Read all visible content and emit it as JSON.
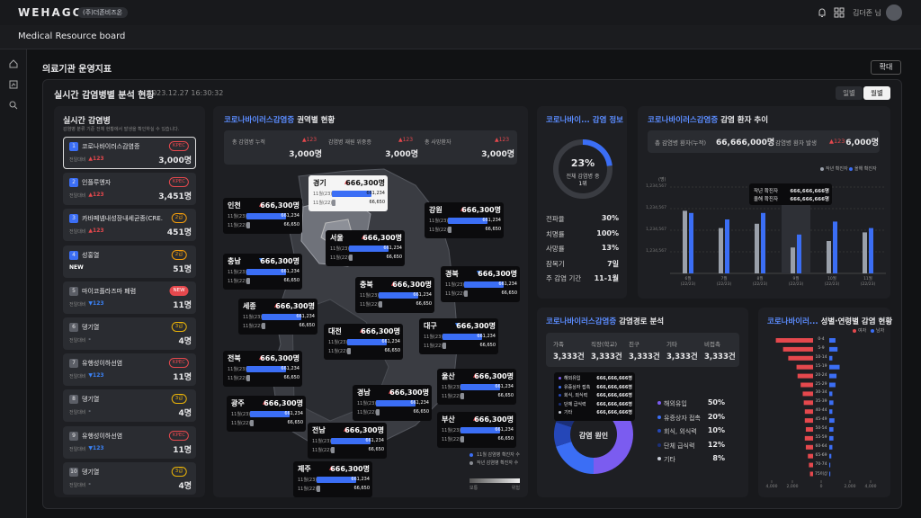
{
  "header": {
    "logo": "WEHAGO",
    "company": "(주)더존비즈온",
    "user": "김더존 님"
  },
  "board_title": "Medical Resource board",
  "page": {
    "title": "의료기관 운영지표",
    "expand": "확대"
  },
  "panel": {
    "title": "실시간 감염병별 분석 현황",
    "timestamp": "2023.12.27 16:30:32",
    "tabs": [
      "일별",
      "월별"
    ]
  },
  "disease_list": {
    "title": "실시간 감염병",
    "subtitle": "감염병 분류 기준 전체 현황에서 발생을 확인하실 수 있습니다.",
    "items": [
      {
        "rank": "1",
        "rank_color": "#3b6ef5",
        "name": "코로나바이러스감염증",
        "badge": "KPEC",
        "badge_color": "#e5484d",
        "compare": "전일대비",
        "change": "▲123",
        "change_color": "#e5484d",
        "count": "3,000명"
      },
      {
        "rank": "2",
        "rank_color": "#3b6ef5",
        "name": "인플루엔자",
        "badge": "KPEC",
        "badge_color": "#e5484d",
        "compare": "전일대비",
        "change": "▲123",
        "change_color": "#e5484d",
        "count": "3,451명"
      },
      {
        "rank": "3",
        "rank_color": "#3b6ef5",
        "name": "카바페넴내성장내세균종(CRE...",
        "badge": "2급",
        "badge_color": "#f59e0b",
        "compare": "전일대비",
        "change": "▲123",
        "change_color": "#e5484d",
        "count": "451명"
      },
      {
        "rank": "4",
        "rank_color": "#3b6ef5",
        "name": "성홍열",
        "badge": "2급",
        "badge_color": "#f59e0b",
        "change": "NEW",
        "change_color": "#ffffff",
        "count": "51명"
      },
      {
        "rank": "5",
        "rank_color": "#5b5e66",
        "name": "마이코플라즈마 폐렴",
        "badge": "NEW",
        "badge_color": "#e5484d",
        "badge_filled": true,
        "compare": "전일대비",
        "change": "▼123",
        "change_color": "#3b82f6",
        "count": "11명"
      },
      {
        "rank": "6",
        "rank_color": "#5b5e66",
        "name": "뎅기열",
        "badge": "3급",
        "badge_color": "#eab308",
        "compare": "전일대비",
        "change": "-",
        "change_color": "#9ca3af",
        "count": "4명"
      },
      {
        "rank": "7",
        "rank_color": "#5b5e66",
        "name": "유행성이하선염",
        "badge": "KPEC",
        "badge_color": "#e5484d",
        "compare": "전일대비",
        "change": "▼123",
        "change_color": "#3b82f6",
        "count": "11명"
      },
      {
        "rank": "8",
        "rank_color": "#5b5e66",
        "name": "뎅기열",
        "badge": "3급",
        "badge_color": "#eab308",
        "compare": "전일대비",
        "change": "-",
        "change_color": "#9ca3af",
        "count": "4명"
      },
      {
        "rank": "9",
        "rank_color": "#5b5e66",
        "name": "유행성이하선염",
        "badge": "KPEC",
        "badge_color": "#e5484d",
        "compare": "전일대비",
        "change": "▼123",
        "change_color": "#3b82f6",
        "count": "11명"
      },
      {
        "rank": "10",
        "rank_color": "#5b5e66",
        "name": "뎅기열",
        "badge": "3급",
        "badge_color": "#eab308",
        "compare": "전일대비",
        "change": "-",
        "change_color": "#9ca3af",
        "count": "4명"
      }
    ]
  },
  "regional": {
    "title_highlight": "코로나바이러스감염증",
    "title": "권역별 현황",
    "stats": [
      {
        "label": "총 감염병 누적",
        "change": "▲123",
        "value": "3,000명"
      },
      {
        "label": "감염병 재원 위중증",
        "change": "▲123",
        "value": "3,000명"
      },
      {
        "label": "총 사망환자",
        "change": "▲123",
        "value": "3,000명"
      }
    ],
    "regions": [
      {
        "name": "경기",
        "change": "▲",
        "change_color": "#e5484d",
        "total": "666,300명",
        "rows": [
          {
            "label": "11월(23)",
            "value": 661234,
            "value_label": "661,234"
          },
          {
            "label": "11월(22)",
            "value": 66650,
            "value_label": "66,650"
          }
        ]
      },
      {
        "name": "인천",
        "change": "▲",
        "change_color": "#e5484d",
        "total": "666,300명",
        "rows": [
          {
            "label": "11월(23)",
            "value": 661234,
            "value_label": "661,234"
          },
          {
            "label": "11월(22)",
            "value": 66650,
            "value_label": "66,650"
          }
        ]
      },
      {
        "name": "강원",
        "change": "▲",
        "change_color": "#e5484d",
        "total": "666,300명",
        "rows": [
          {
            "label": "11월(23)",
            "value": 661234,
            "value_label": "661,234"
          },
          {
            "label": "11월(22)",
            "value": 66650,
            "value_label": "66,650"
          }
        ]
      },
      {
        "name": "서울",
        "change": "▲",
        "change_color": "#e5484d",
        "total": "666,300명",
        "rows": [
          {
            "label": "11월(23)",
            "value": 661234,
            "value_label": "661,234"
          },
          {
            "label": "11월(22)",
            "value": 66650,
            "value_label": "66,650"
          }
        ]
      },
      {
        "name": "충남",
        "change": "▼",
        "change_color": "#3b82f6",
        "total": "666,300명",
        "rows": [
          {
            "label": "11월(23)",
            "value": 661234,
            "value_label": "661,234"
          },
          {
            "label": "11월(22)",
            "value": 66650,
            "value_label": "66,650"
          }
        ]
      },
      {
        "name": "경북",
        "change": "▼",
        "change_color": "#3b82f6",
        "total": "666,300명",
        "rows": [
          {
            "label": "11월(23)",
            "value": 661234,
            "value_label": "661,234"
          },
          {
            "label": "11월(22)",
            "value": 66650,
            "value_label": "66,650"
          }
        ]
      },
      {
        "name": "충북",
        "change": "▲",
        "change_color": "#e5484d",
        "total": "666,300명",
        "rows": [
          {
            "label": "11월(23)",
            "value": 661234,
            "value_label": "661,234"
          },
          {
            "label": "11월(22)",
            "value": 66650,
            "value_label": "66,650"
          }
        ]
      },
      {
        "name": "세종",
        "change": "▲",
        "change_color": "#e5484d",
        "total": "666,300명",
        "rows": [
          {
            "label": "11월(23)",
            "value": 661234,
            "value_label": "661,234"
          },
          {
            "label": "11월(22)",
            "value": 66650,
            "value_label": "66,650"
          }
        ]
      },
      {
        "name": "대전",
        "change": "▲",
        "change_color": "#e5484d",
        "total": "666,300명",
        "rows": [
          {
            "label": "11월(23)",
            "value": 661234,
            "value_label": "661,234"
          },
          {
            "label": "11월(22)",
            "value": 66650,
            "value_label": "66,650"
          }
        ]
      },
      {
        "name": "대구",
        "change": "▼",
        "change_color": "#3b82f6",
        "total": "666,300명",
        "rows": [
          {
            "label": "11월(23)",
            "value": 661234,
            "value_label": "661,234"
          },
          {
            "label": "11월(22)",
            "value": 66650,
            "value_label": "66,650"
          }
        ]
      },
      {
        "name": "전북",
        "change": "▲",
        "change_color": "#e5484d",
        "total": "666,300명",
        "rows": [
          {
            "label": "11월(23)",
            "value": 661234,
            "value_label": "661,234"
          },
          {
            "label": "11월(22)",
            "value": 66650,
            "value_label": "66,650"
          }
        ]
      },
      {
        "name": "울산",
        "change": "▲",
        "change_color": "#e5484d",
        "total": "666,300명",
        "rows": [
          {
            "label": "11월(23)",
            "value": 661234,
            "value_label": "661,234"
          },
          {
            "label": "11월(22)",
            "value": 66650,
            "value_label": "66,650"
          }
        ]
      },
      {
        "name": "경남",
        "change": "▲",
        "change_color": "#e5484d",
        "total": "666,300명",
        "rows": [
          {
            "label": "11월(23)",
            "value": 661234,
            "value_label": "661,234"
          },
          {
            "label": "11월(22)",
            "value": 66650,
            "value_label": "66,650"
          }
        ]
      },
      {
        "name": "광주",
        "change": "▲",
        "change_color": "#e5484d",
        "total": "666,300명",
        "rows": [
          {
            "label": "11월(23)",
            "value": 661234,
            "value_label": "661,234"
          },
          {
            "label": "11월(22)",
            "value": 66650,
            "value_label": "66,650"
          }
        ]
      },
      {
        "name": "부산",
        "change": "▲",
        "change_color": "#e5484d",
        "total": "666,300명",
        "rows": [
          {
            "label": "11월(23)",
            "value": 661234,
            "value_label": "661,234"
          },
          {
            "label": "11월(22)",
            "value": 66650,
            "value_label": "66,650"
          }
        ]
      },
      {
        "name": "전남",
        "change": "▲",
        "change_color": "#e5484d",
        "total": "666,300명",
        "rows": [
          {
            "label": "11월(23)",
            "value": 661234,
            "value_label": "661,234"
          },
          {
            "label": "11월(22)",
            "value": 66650,
            "value_label": "66,650"
          }
        ]
      },
      {
        "name": "제주",
        "change": "▲",
        "change_color": "#e5484d",
        "total": "666,300명",
        "rows": [
          {
            "label": "11월(23)",
            "value": 661234,
            "value_label": "661,234"
          },
          {
            "label": "11월(22)",
            "value": 66650,
            "value_label": "66,650"
          }
        ]
      }
    ],
    "legend": [
      {
        "name": "11월 감염병 확진자 수",
        "color": "#3b6ef5"
      },
      {
        "name": "작년 감염병 확진자 수",
        "color": "#8a8d94"
      }
    ],
    "scale": [
      "보통",
      "위험"
    ]
  },
  "info": {
    "title": "코로나바이... 감염 정보",
    "percent": 23,
    "percent_label": "23%",
    "subtitle": "전체 감염병 중",
    "rank": "1위",
    "color": "#3b6ef5",
    "stats": [
      {
        "label": "전파율",
        "value": "30%"
      },
      {
        "label": "치명률",
        "value": "100%"
      },
      {
        "label": "사망률",
        "value": "13%"
      },
      {
        "label": "잠복기",
        "value": "7일"
      },
      {
        "label": "주 감염 기간",
        "value": "11-1월"
      }
    ]
  },
  "trend": {
    "title_highlight": "코로나바이러스감염증",
    "title": "감염 환자 추이",
    "stats": [
      {
        "label": "총 감염병 환자(누적)",
        "value": "66,666,000명"
      },
      {
        "label": "감염병 환자 발생",
        "change": "▲123",
        "value": "6,000명"
      }
    ],
    "chart_data": {
      "type": "bar",
      "y_unit": "(명)",
      "categories": [
        "6월\n(22/23)",
        "7월\n(22/23)",
        "8월\n(22/23)",
        "9월\n(22/23)",
        "10월\n(22/23)",
        "11월\n(22/23)"
      ],
      "series": [
        {
          "name": "작년 확진자",
          "color": "#9aa0aa",
          "values": [
            2.9,
            2.1,
            2.3,
            1.2,
            1.5,
            1.9
          ]
        },
        {
          "name": "올해 확진자",
          "color": "#3b6ef5",
          "values": [
            2.8,
            2.5,
            2.8,
            1.8,
            2.4,
            2.1
          ]
        }
      ],
      "ylim": [
        0,
        4
      ],
      "ytick_labels": [
        "1,234,567",
        "1,234,567",
        "1,234,567",
        "1,234,567"
      ],
      "tooltip": [
        {
          "name": "작년 확진자",
          "value": "666,666,666명"
        },
        {
          "name": "올해 확진자",
          "value": "666,666,666명"
        }
      ]
    }
  },
  "route": {
    "title_highlight": "코로나바이러스감염증",
    "title": "감염경로 분석",
    "stats": [
      {
        "label": "가족",
        "value": "3,333건"
      },
      {
        "label": "직장(학교)",
        "value": "3,333건"
      },
      {
        "label": "친구",
        "value": "3,333건"
      },
      {
        "label": "기타",
        "value": "3,333건"
      },
      {
        "label": "비접촉",
        "value": "3,333건"
      }
    ],
    "chart_data": {
      "type": "donut",
      "center": "감염 원인",
      "categories": [
        "해외유입",
        "유증상자 접촉",
        "회식, 외식력",
        "단체 급식력",
        "기타"
      ],
      "values": [
        50,
        20,
        10,
        12,
        8
      ],
      "value_labels": [
        "50%",
        "20%",
        "10%",
        "12%",
        "8%"
      ],
      "colors": [
        "#7b5cf0",
        "#3b6ef5",
        "#2547b8",
        "#1b2f78",
        "#c8ccd6"
      ],
      "tooltip": [
        {
          "name": "해외유입",
          "value": "666,666,666명"
        },
        {
          "name": "유증상자 접촉",
          "value": "666,666,666명"
        },
        {
          "name": "회식, 외식력",
          "value": "666,666,666명"
        },
        {
          "name": "단체 급식력",
          "value": "666,666,666명"
        },
        {
          "name": "기타",
          "value": "666,666,666명"
        }
      ]
    }
  },
  "pyramid": {
    "title_highlight": "코로나바이러...",
    "title": "성별·연령별 감염 현황",
    "chart_data": {
      "type": "pyramid",
      "categories": [
        "0-4",
        "5-9",
        "10-14",
        "15-19",
        "20-24",
        "25-29",
        "30-34",
        "35-39",
        "40-44",
        "45-49",
        "50-54",
        "55-59",
        "60-64",
        "65-69",
        "70-74",
        "75이상"
      ],
      "series": [
        {
          "name": "여자",
          "color": "#e5484d",
          "values": [
            3600,
            2900,
            2400,
            1600,
            1500,
            1200,
            1000,
            900,
            800,
            800,
            700,
            800,
            700,
            500,
            400,
            300
          ]
        },
        {
          "name": "남자",
          "color": "#3b6ef5",
          "values": [
            600,
            800,
            300,
            1000,
            700,
            600,
            300,
            400,
            300,
            500,
            400,
            400,
            300,
            200,
            100,
            100
          ]
        }
      ],
      "xlim": [
        0,
        4000
      ],
      "xticks": [
        0,
        {
          "value": 2000,
          "label": "2,000"
        },
        {
          "value": 4000,
          "label": "4,000"
        }
      ]
    }
  }
}
